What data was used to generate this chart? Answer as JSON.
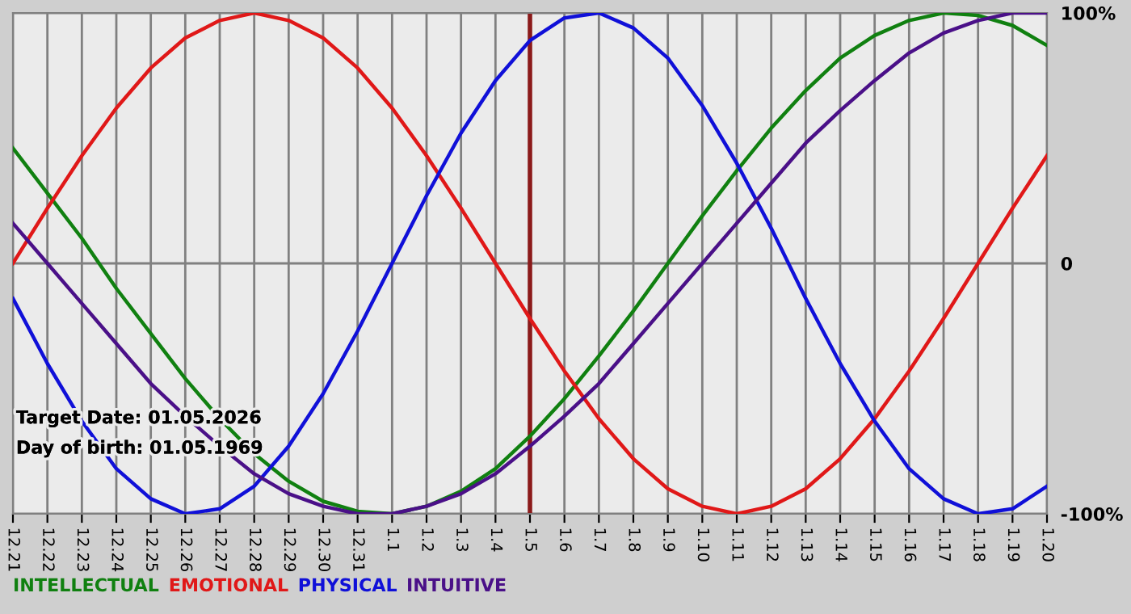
{
  "chart_data": {
    "type": "line",
    "categories": [
      "12.21",
      "12.22",
      "12.23",
      "12.24",
      "12.25",
      "12.26",
      "12.27",
      "12.28",
      "12.29",
      "12.30",
      "12.31",
      "1.1",
      "1.2",
      "1.3",
      "1.4",
      "1.5",
      "1.6",
      "1.7",
      "1.8",
      "1.9",
      "1.10",
      "1.11",
      "1.12",
      "1.13",
      "1.14",
      "1.15",
      "1.16",
      "1.17",
      "1.18",
      "1.19",
      "1.20"
    ],
    "series": [
      {
        "name": "INTELLECTUAL",
        "color": "#108010",
        "values": [
          46,
          28,
          10,
          -10,
          -28,
          -46,
          -62,
          -76,
          -87,
          -95,
          -99,
          -100,
          -97,
          -91,
          -82,
          -69,
          -54,
          -37,
          -19,
          0,
          19,
          37,
          54,
          69,
          82,
          91,
          97,
          100,
          99,
          95,
          87
        ]
      },
      {
        "name": "EMOTIONAL",
        "color": "#e01818",
        "values": [
          0,
          22,
          43,
          62,
          78,
          90,
          97,
          100,
          97,
          90,
          78,
          62,
          43,
          22,
          0,
          -22,
          -43,
          -62,
          -78,
          -90,
          -97,
          -100,
          -97,
          -90,
          -78,
          -62,
          -43,
          -22,
          0,
          22,
          43
        ]
      },
      {
        "name": "PHYSICAL",
        "color": "#1010d8",
        "values": [
          -14,
          -40,
          -63,
          -82,
          -94,
          -100,
          -98,
          -89,
          -73,
          -52,
          -27,
          0,
          27,
          52,
          73,
          89,
          98,
          100,
          94,
          82,
          63,
          40,
          14,
          -14,
          -40,
          -63,
          -82,
          -94,
          -100,
          -98,
          -89
        ]
      },
      {
        "name": "INTUITIVE",
        "color": "#4a1088",
        "values": [
          16,
          0,
          -16,
          -32,
          -48,
          -61,
          -73,
          -84,
          -92,
          -97,
          -100,
          -100,
          -97,
          -92,
          -84,
          -73,
          -61,
          -48,
          -32,
          -16,
          0,
          16,
          32,
          48,
          61,
          73,
          84,
          92,
          97,
          100,
          100
        ]
      }
    ],
    "ylim": [
      -100,
      100
    ],
    "yticks": [
      {
        "value": 100,
        "label": "100%"
      },
      0,
      {
        "value": -100,
        "label": "-100%"
      }
    ],
    "grid": true,
    "legend": "bottom",
    "ref_lines": [
      {
        "axis": "x",
        "value": "1.5",
        "color": "#8b1a1a"
      }
    ],
    "annotations": [
      "Target Date: 01.05.2026",
      "Day of birth: 01.05.1969"
    ]
  }
}
